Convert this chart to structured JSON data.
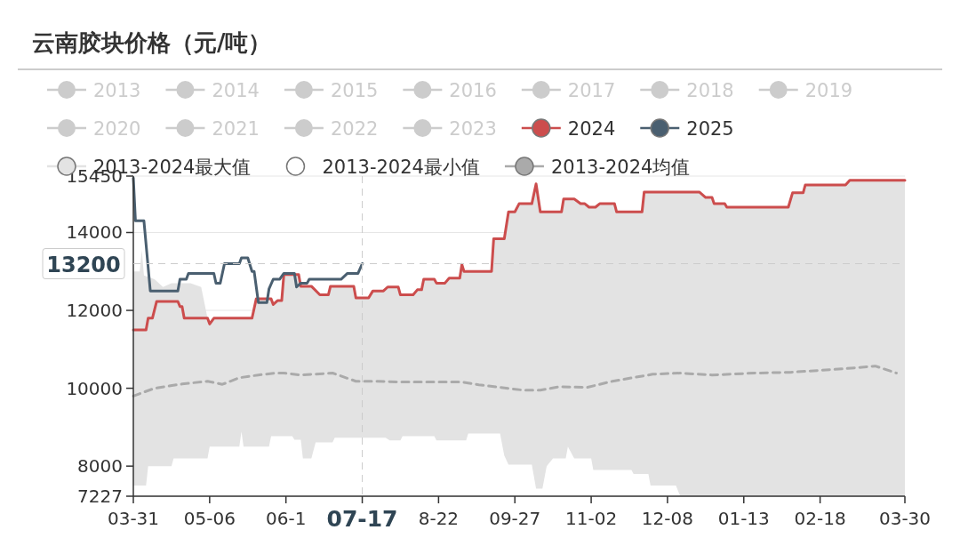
{
  "chart_data": {
    "type": "line",
    "title": "云南胶块价格（元/吨）",
    "xlim": [
      "2024-03-31",
      "2025-03-30"
    ],
    "xticks": [
      {
        "value": "2024-03-31",
        "label": "03-31"
      },
      {
        "value": "2024-05-06",
        "label": "05-06"
      },
      {
        "value": "2024-06-11",
        "label": "06-1"
      },
      {
        "value": "2024-07-17",
        "label": null
      },
      {
        "value": "2024-08-22",
        "label": "8-22"
      },
      {
        "value": "2024-09-27",
        "label": "09-27"
      },
      {
        "value": "2024-11-02",
        "label": "11-02"
      },
      {
        "value": "2024-12-08",
        "label": "12-08"
      },
      {
        "value": "2025-01-13",
        "label": "01-13"
      },
      {
        "value": "2025-02-18",
        "label": "02-18"
      },
      {
        "value": "2025-03-30",
        "label": "03-30"
      }
    ],
    "ylim": [
      7227,
      15450
    ],
    "yticks": [
      7227,
      8000,
      10000,
      12000,
      14000,
      15450
    ],
    "grid": "y",
    "legend": "top",
    "ref_lines": [
      {
        "axis": "y",
        "value": 13200,
        "label": "13200",
        "color": "#cccccc",
        "line_style": "dashed"
      },
      {
        "axis": "x",
        "value": "2024-07-17",
        "label": "07-17",
        "color": "#cccccc",
        "line_style": "dashed"
      }
    ],
    "series": [
      {
        "name": "2013",
        "color": "#cccccc"
      },
      {
        "name": "2014",
        "color": "#cccccc"
      },
      {
        "name": "2015",
        "color": "#cccccc"
      },
      {
        "name": "2016",
        "color": "#cccccc"
      },
      {
        "name": "2017",
        "color": "#cccccc"
      },
      {
        "name": "2018",
        "color": "#cccccc"
      },
      {
        "name": "2019",
        "color": "#cccccc"
      },
      {
        "name": "2020",
        "color": "#cccccc"
      },
      {
        "name": "2021",
        "color": "#cccccc"
      },
      {
        "name": "2022",
        "color": "#cccccc"
      },
      {
        "name": "2023",
        "color": "#cccccc"
      },
      {
        "name": "2024",
        "color": "#cc4d4d",
        "x": [
          "2024-03-31",
          "2024-04-06",
          "2024-04-07",
          "2024-04-09",
          "2024-04-11",
          "2024-04-21",
          "2024-04-22",
          "2024-04-23",
          "2024-04-24",
          "2024-05-05",
          "2024-05-06",
          "2024-05-08",
          "2024-05-26",
          "2024-05-28",
          "2024-06-04",
          "2024-06-05",
          "2024-06-07",
          "2024-06-09",
          "2024-06-10",
          "2024-06-17",
          "2024-06-18",
          "2024-06-23",
          "2024-06-27",
          "2024-07-01",
          "2024-07-02",
          "2024-07-13",
          "2024-07-14",
          "2024-07-20",
          "2024-07-22",
          "2024-07-27",
          "2024-07-29",
          "2024-08-03",
          "2024-08-04",
          "2024-08-10",
          "2024-08-12",
          "2024-08-14",
          "2024-08-15",
          "2024-08-20",
          "2024-08-21",
          "2024-08-25",
          "2024-08-27",
          "2024-09-01",
          "2024-09-02",
          "2024-09-03",
          "2024-09-16",
          "2024-09-17",
          "2024-09-22",
          "2024-09-24",
          "2024-09-27",
          "2024-09-29",
          "2024-10-05",
          "2024-10-07",
          "2024-10-09",
          "2024-10-19",
          "2024-10-20",
          "2024-10-25",
          "2024-10-28",
          "2024-10-30",
          "2024-11-01",
          "2024-11-04",
          "2024-11-06",
          "2024-11-13",
          "2024-11-14",
          "2024-11-26",
          "2024-11-27",
          "2024-12-23",
          "2024-12-26",
          "2024-12-29",
          "2024-12-30",
          "2025-01-04",
          "2025-01-05",
          "2025-02-03",
          "2025-02-05",
          "2025-02-10",
          "2025-02-11",
          "2025-03-02",
          "2025-03-04",
          "2025-03-30"
        ],
        "values": [
          11500,
          11500,
          11800,
          11800,
          12230,
          12230,
          12100,
          12100,
          11800,
          11800,
          11650,
          11800,
          11800,
          12300,
          12300,
          12150,
          12250,
          12250,
          12920,
          12920,
          12620,
          12620,
          12400,
          12400,
          12620,
          12620,
          12320,
          12320,
          12500,
          12500,
          12600,
          12600,
          12400,
          12400,
          12530,
          12530,
          12800,
          12800,
          12700,
          12700,
          12830,
          12830,
          13180,
          13000,
          13000,
          13840,
          13840,
          14530,
          14530,
          14740,
          14740,
          15250,
          14530,
          14530,
          14860,
          14860,
          14740,
          14740,
          14650,
          14650,
          14740,
          14740,
          14530,
          14530,
          15040,
          15040,
          14900,
          14900,
          14740,
          14740,
          14650,
          14650,
          15020,
          15020,
          15220,
          15220,
          15340,
          15340
        ]
      },
      {
        "name": "2025",
        "color": "#4a5f70",
        "x": [
          "2024-03-31",
          "2024-04-01",
          "2024-04-05",
          "2024-04-08",
          "2024-04-21",
          "2024-04-22",
          "2024-04-25",
          "2024-04-26",
          "2024-05-08",
          "2024-05-09",
          "2024-05-11",
          "2024-05-13",
          "2024-05-20",
          "2024-05-21",
          "2024-05-24",
          "2024-05-26",
          "2024-05-27",
          "2024-05-29",
          "2024-06-02",
          "2024-06-03",
          "2024-06-05",
          "2024-06-08",
          "2024-06-10",
          "2024-06-15",
          "2024-06-16",
          "2024-06-18",
          "2024-06-21",
          "2024-06-22",
          "2024-07-07",
          "2024-07-10",
          "2024-07-15",
          "2024-07-17"
        ],
        "values": [
          15400,
          14300,
          14300,
          12500,
          12500,
          12800,
          12800,
          12950,
          12950,
          12700,
          12700,
          13200,
          13200,
          13350,
          13350,
          13000,
          13000,
          12200,
          12200,
          12550,
          12800,
          12800,
          12950,
          12950,
          12600,
          12700,
          12700,
          12800,
          12800,
          12950,
          12950,
          13200
        ]
      },
      {
        "name": "2013-2024最大值",
        "type": "area",
        "color": "#e3e3e3",
        "x": [
          "2024-03-31",
          "2024-04-03",
          "2024-04-04",
          "2024-04-05",
          "2024-04-10",
          "2024-04-14",
          "2024-04-18",
          "2024-04-27",
          "2024-05-02",
          "2024-05-05",
          "2024-05-06",
          "2024-05-08",
          "2024-05-26",
          "2024-05-28",
          "2024-06-04",
          "2024-06-05",
          "2024-06-07",
          "2024-06-09",
          "2024-06-10",
          "2024-06-17",
          "2024-06-18",
          "2024-06-23",
          "2024-06-27",
          "2024-07-01",
          "2024-07-02",
          "2024-07-13",
          "2024-07-14",
          "2024-07-20",
          "2024-07-22",
          "2024-07-27",
          "2024-07-29",
          "2024-08-03",
          "2024-08-04",
          "2024-08-10",
          "2024-08-12",
          "2024-08-14",
          "2024-08-15",
          "2024-08-20",
          "2024-08-21",
          "2024-08-25",
          "2024-08-27",
          "2024-09-01",
          "2024-09-02",
          "2024-09-03",
          "2024-09-16",
          "2024-09-17",
          "2024-09-22",
          "2024-09-24",
          "2024-09-27",
          "2024-09-29",
          "2024-10-05",
          "2024-10-07",
          "2024-10-09",
          "2024-10-19",
          "2024-10-20",
          "2024-10-25",
          "2024-10-28",
          "2024-10-30",
          "2024-11-01",
          "2024-11-04",
          "2024-11-06",
          "2024-11-13",
          "2024-11-14",
          "2024-11-26",
          "2024-11-27",
          "2024-12-23",
          "2024-12-26",
          "2024-12-29",
          "2024-12-30",
          "2025-01-04",
          "2025-01-05",
          "2025-02-03",
          "2025-02-05",
          "2025-02-10",
          "2025-02-11",
          "2025-03-02",
          "2025-03-04",
          "2025-03-30"
        ],
        "values": [
          13000,
          13000,
          13550,
          12900,
          12800,
          12600,
          12700,
          12700,
          12600,
          11800,
          11650,
          11800,
          11800,
          12300,
          12300,
          12150,
          12250,
          12250,
          12920,
          12920,
          12620,
          12620,
          12400,
          12400,
          12620,
          12620,
          12320,
          12320,
          12500,
          12500,
          12600,
          12600,
          12400,
          12400,
          12530,
          12530,
          12800,
          12800,
          12700,
          12700,
          12830,
          12830,
          13180,
          13000,
          13000,
          13840,
          13840,
          14530,
          14530,
          14740,
          14740,
          15250,
          14530,
          14530,
          14860,
          14860,
          14740,
          14740,
          14650,
          14650,
          14740,
          14740,
          14530,
          14530,
          15040,
          15040,
          14900,
          14900,
          14740,
          14740,
          14650,
          14650,
          15020,
          15020,
          15220,
          15220,
          15340,
          15340
        ]
      },
      {
        "name": "2013-2024最小值",
        "type": "area",
        "color": "#ffffff",
        "x": [
          "2024-03-31",
          "2024-04-06",
          "2024-04-07",
          "2024-04-18",
          "2024-04-19",
          "2024-05-05",
          "2024-05-06",
          "2024-05-20",
          "2024-05-21",
          "2024-05-22",
          "2024-06-03",
          "2024-06-04",
          "2024-06-14",
          "2024-06-15",
          "2024-06-18",
          "2024-06-19",
          "2024-06-23",
          "2024-06-25",
          "2024-07-03",
          "2024-07-04",
          "2024-07-28",
          "2024-07-30",
          "2024-08-04",
          "2024-08-05",
          "2024-08-20",
          "2024-08-21",
          "2024-09-04",
          "2024-09-05",
          "2024-09-20",
          "2024-09-22",
          "2024-09-24",
          "2024-10-05",
          "2024-10-07",
          "2024-10-10",
          "2024-10-12",
          "2024-10-15",
          "2024-10-21",
          "2024-10-22",
          "2024-10-25",
          "2024-11-02",
          "2024-11-03",
          "2024-11-21",
          "2024-11-22",
          "2024-11-29",
          "2024-11-30",
          "2024-12-12",
          "2024-12-14",
          "2025-03-30"
        ],
        "values": [
          7500,
          7500,
          8000,
          8000,
          8200,
          8200,
          8500,
          8500,
          8890,
          8500,
          8500,
          8770,
          8770,
          8680,
          8680,
          8200,
          8200,
          8610,
          8610,
          8730,
          8730,
          8660,
          8660,
          8770,
          8770,
          8660,
          8660,
          8840,
          8840,
          8270,
          8040,
          8040,
          7420,
          7420,
          8000,
          8200,
          8200,
          8500,
          8200,
          8200,
          7900,
          7900,
          7800,
          7800,
          7500,
          7500,
          7227,
          7227
        ]
      },
      {
        "name": "2013-2024均值",
        "color": "#aaaaaa",
        "line_style": "dashed",
        "x": [
          "2024-03-31",
          "2024-04-10",
          "2024-04-23",
          "2024-05-05",
          "2024-05-12",
          "2024-05-20",
          "2024-05-29",
          "2024-06-06",
          "2024-06-10",
          "2024-06-18",
          "2024-07-03",
          "2024-07-14",
          "2024-07-24",
          "2024-08-04",
          "2024-09-02",
          "2024-09-10",
          "2024-10-01",
          "2024-10-09",
          "2024-10-18",
          "2024-10-31",
          "2024-11-12",
          "2024-12-01",
          "2024-12-14",
          "2024-12-29",
          "2025-01-18",
          "2025-02-04",
          "2025-03-01",
          "2025-03-16",
          "2025-03-26"
        ],
        "values": [
          9800,
          10000,
          10110,
          10180,
          10100,
          10270,
          10340,
          10390,
          10390,
          10340,
          10390,
          10180,
          10180,
          10160,
          10160,
          10090,
          9950,
          9950,
          10040,
          10020,
          10180,
          10360,
          10390,
          10340,
          10390,
          10410,
          10500,
          10570,
          10390
        ]
      }
    ]
  }
}
